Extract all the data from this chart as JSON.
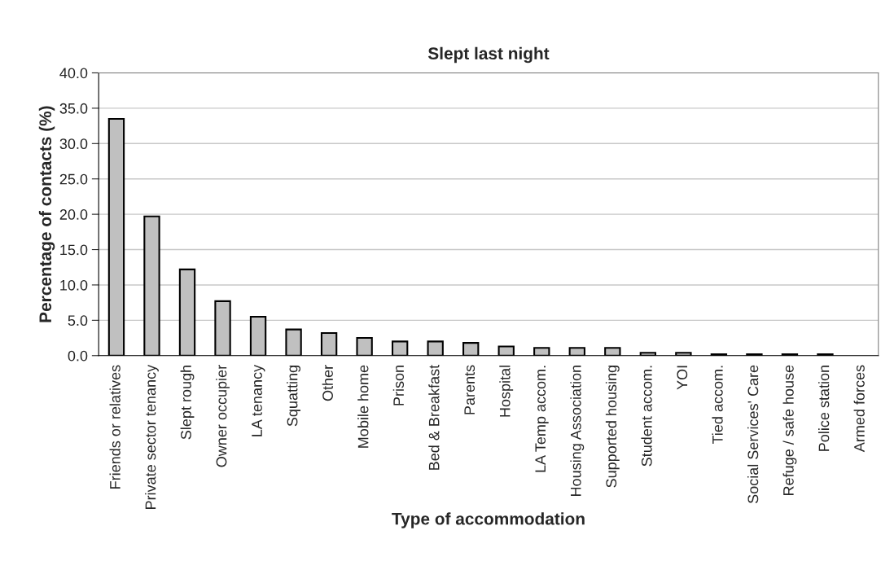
{
  "chart_data": {
    "type": "bar",
    "title": "Slept last night",
    "xlabel": "Type of accommodation",
    "ylabel": "Percentage of contacts (%)",
    "categories": [
      "Friends or relatives",
      "Private sector tenancy",
      "Slept rough",
      "Owner occupier",
      "LA tenancy",
      "Squatting",
      "Other",
      "Mobile home",
      "Prison",
      "Bed & Breakfast",
      "Parents",
      "Hospital",
      "LA Temp accom.",
      "Housing Association",
      "Supported housing",
      "Student accom.",
      "YOI",
      "Tied accom.",
      "Social Services' Care",
      "Refuge / safe house",
      "Police station",
      "Armed forces"
    ],
    "values": [
      33.5,
      19.7,
      12.2,
      7.7,
      5.5,
      3.7,
      3.2,
      2.5,
      2.0,
      2.0,
      1.8,
      1.3,
      1.1,
      1.1,
      1.1,
      0.4,
      0.4,
      0.2,
      0.2,
      0.2,
      0.2,
      0.0
    ],
    "color": "#c0c0c0",
    "ylim": [
      0,
      40
    ],
    "yticks": [
      {
        "value": 0,
        "label": "0.0"
      },
      {
        "value": 5,
        "label": "5.0"
      },
      {
        "value": 10,
        "label": "10.0"
      },
      {
        "value": 15,
        "label": "15.0"
      },
      {
        "value": 20,
        "label": "20.0"
      },
      {
        "value": 25,
        "label": "25.0"
      },
      {
        "value": 30,
        "label": "30.0"
      },
      {
        "value": 35,
        "label": "35.0"
      },
      {
        "value": 40,
        "label": "40.0"
      }
    ],
    "grid": "y",
    "legend": false
  }
}
